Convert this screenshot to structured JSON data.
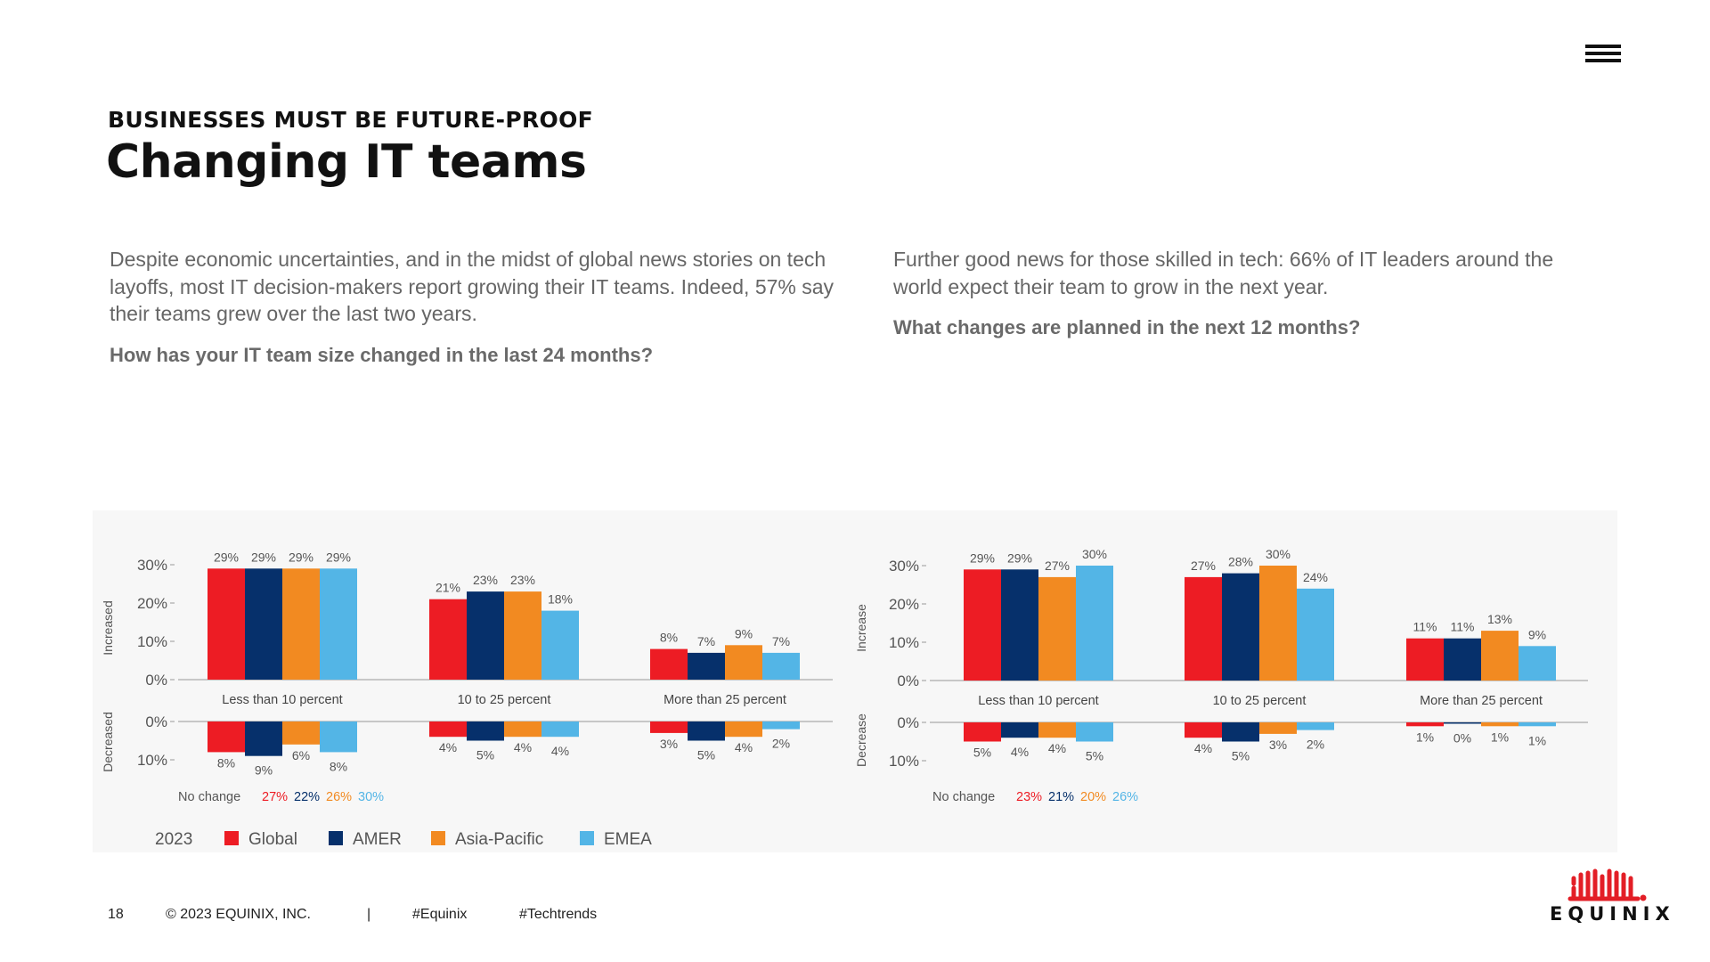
{
  "header": {
    "eyebrow": "BUSINESSES MUST BE FUTURE-PROOF",
    "title": "Changing IT teams"
  },
  "left": {
    "paragraph": "Despite economic uncertainties, and in the midst of global news stories on tech layoffs, most IT decision-makers report growing their IT teams. Indeed, 57% say their teams grew over the last two years.",
    "question": "How has your IT team size changed in the last 24 months?"
  },
  "right": {
    "paragraph": "Further good news for those skilled in tech: 66% of IT leaders around the world expect their team to grow in the next year.",
    "question": "What changes are planned in the next 12 months?"
  },
  "legend": {
    "year": "2023"
  },
  "chart_data": [
    {
      "type": "bar",
      "categories": [
        "Less than 10 percent",
        "10 to 25 percent",
        "More than 25 percent"
      ],
      "upper_axis_label": "Increased",
      "lower_axis_label": "Decreased",
      "upper_ticks": [
        "30%",
        "20%",
        "10%",
        "0%"
      ],
      "lower_ticks": [
        "0%",
        "10%"
      ],
      "ylim_increase": [
        0,
        30
      ],
      "ylim_decrease": [
        0,
        10
      ],
      "series": [
        {
          "name": "Global",
          "color": "#ED1C24",
          "increase": [
            29,
            21,
            8
          ],
          "decrease": [
            8,
            4,
            3
          ],
          "no_change": "27%"
        },
        {
          "name": "AMER",
          "color": "#06306B",
          "increase": [
            29,
            23,
            7
          ],
          "decrease": [
            9,
            5,
            5
          ],
          "no_change": "22%"
        },
        {
          "name": "Asia-Pacific",
          "color": "#F28A21",
          "increase": [
            29,
            23,
            9
          ],
          "decrease": [
            6,
            4,
            4
          ],
          "no_change": "26%"
        },
        {
          "name": "EMEA",
          "color": "#53B5E6",
          "increase": [
            29,
            18,
            7
          ],
          "decrease": [
            8,
            4,
            2
          ],
          "no_change": "30%"
        }
      ],
      "no_change_label": "No change",
      "grid": false
    },
    {
      "type": "bar",
      "categories": [
        "Less than 10 percent",
        "10 to 25 percent",
        "More than 25 percent"
      ],
      "upper_axis_label": "Increase",
      "lower_axis_label": "Decrease",
      "upper_ticks": [
        "30%",
        "20%",
        "10%",
        "0%"
      ],
      "lower_ticks": [
        "0%",
        "10%"
      ],
      "ylim_increase": [
        0,
        30
      ],
      "ylim_decrease": [
        0,
        10
      ],
      "series": [
        {
          "name": "Global",
          "color": "#ED1C24",
          "increase": [
            29,
            27,
            11
          ],
          "decrease": [
            5,
            4,
            1
          ],
          "no_change": "23%"
        },
        {
          "name": "AMER",
          "color": "#06306B",
          "increase": [
            29,
            28,
            11
          ],
          "decrease": [
            4,
            5,
            0
          ],
          "no_change": "21%"
        },
        {
          "name": "Asia-Pacific",
          "color": "#F28A21",
          "increase": [
            27,
            30,
            13
          ],
          "decrease": [
            4,
            3,
            1
          ],
          "no_change": "20%"
        },
        {
          "name": "EMEA",
          "color": "#53B5E6",
          "increase": [
            30,
            24,
            9
          ],
          "decrease": [
            5,
            2,
            1
          ],
          "no_change": "26%"
        }
      ],
      "no_change_label": "No change",
      "grid": false
    }
  ],
  "footer": {
    "page_number": "18",
    "copyright": "© 2023 EQUINIX, INC.",
    "separator": "|",
    "tag1": "#Equinix",
    "tag2": "#Techtrends"
  },
  "logo": {
    "text": "EQUINIX",
    "color": "#E31E26"
  },
  "icons": {
    "menu": "hamburger-menu-icon",
    "logo": "equinix-logo-icon"
  }
}
